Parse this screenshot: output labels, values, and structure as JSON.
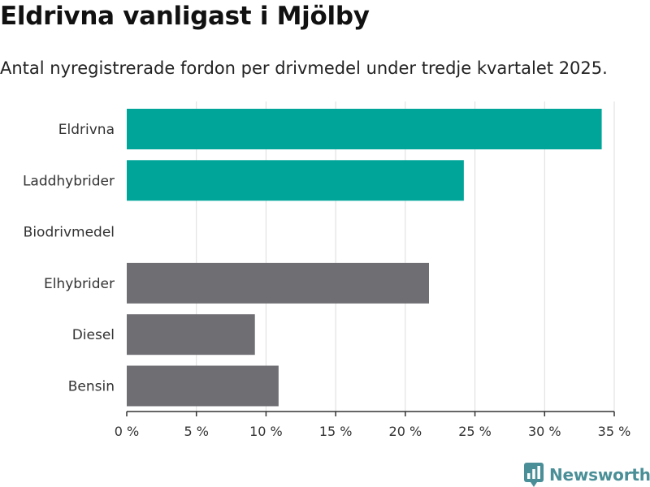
{
  "title": "Eldrivna vanligast i Mjölby",
  "subtitle": "Antal nyregistrerade fordon per drivmedel under tredje kvartalet 2025.",
  "brand": {
    "name": "Newsworthy",
    "icon": "newsworthy-logo-icon",
    "color": "#4a8f97"
  },
  "colors": {
    "highlight": "#00a59a",
    "default": "#6f6e73",
    "grid": "#dddddd"
  },
  "chart_data": {
    "type": "bar",
    "orientation": "horizontal",
    "title": "Eldrivna vanligast i Mjölby",
    "subtitle": "Antal nyregistrerade fordon per drivmedel under tredje kvartalet 2025.",
    "categories": [
      "Eldrivna",
      "Laddhybrider",
      "Biodrivmedel",
      "Elhybrider",
      "Diesel",
      "Bensin"
    ],
    "values": [
      34.1,
      24.2,
      0,
      21.7,
      9.2,
      10.9
    ],
    "highlighted": [
      true,
      true,
      false,
      false,
      false,
      false
    ],
    "xlim": [
      0,
      35
    ],
    "xticks": [
      0,
      5,
      10,
      15,
      20,
      25,
      30,
      35
    ],
    "xtick_labels": [
      "0 %",
      "5 %",
      "10 %",
      "15 %",
      "20 %",
      "25 %",
      "30 %",
      "35 %"
    ],
    "grid": "vertical"
  }
}
